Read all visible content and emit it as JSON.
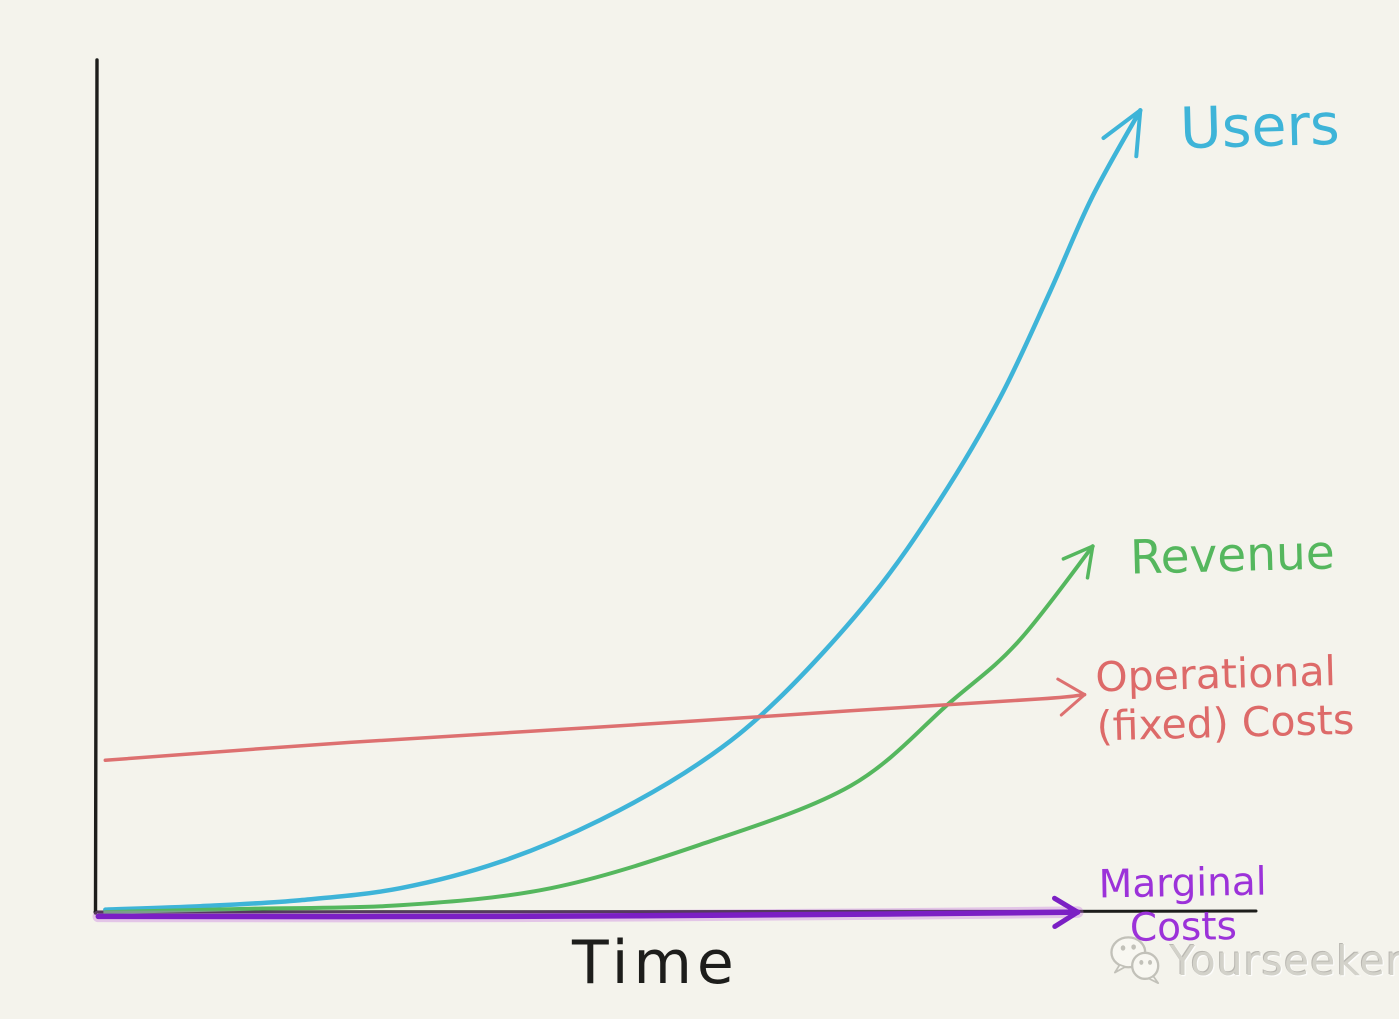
{
  "page": {
    "background_color": "#f4f3ec"
  },
  "chart_data": {
    "type": "line",
    "style": "hand-drawn-sketch",
    "title": "",
    "xlabel": "Time",
    "ylabel": "",
    "axes": {
      "color": "#1d1d1b",
      "ticks": false,
      "gridlines": false,
      "x_range": [
        0,
        1
      ],
      "y_range": [
        0,
        1
      ]
    },
    "legend_position": "inline-right-end-of-line",
    "series": [
      {
        "name": "Users",
        "label_lines": [
          "Users"
        ],
        "color": "#3eb4d8",
        "label_color": "#3eb4d8",
        "stroke_width": 4.5,
        "shape": "exponential-growth",
        "arrow": true,
        "arrow_size": 46,
        "arrow_spread": 0.42,
        "points": [
          [
            0.008,
            0.004
          ],
          [
            0.09,
            0.008
          ],
          [
            0.176,
            0.015
          ],
          [
            0.262,
            0.029
          ],
          [
            0.349,
            0.06
          ],
          [
            0.435,
            0.109
          ],
          [
            0.521,
            0.176
          ],
          [
            0.588,
            0.25
          ],
          [
            0.668,
            0.369
          ],
          [
            0.728,
            0.484
          ],
          [
            0.78,
            0.604
          ],
          [
            0.823,
            0.728
          ],
          [
            0.859,
            0.838
          ],
          [
            0.901,
            0.941
          ]
        ]
      },
      {
        "name": "Revenue",
        "label_lines": [
          "Revenue"
        ],
        "color": "#55b75e",
        "label_color": "#55b75e",
        "stroke_width": 4,
        "shape": "exponential-growth-lagging-users",
        "arrow": true,
        "arrow_size": 32,
        "arrow_spread": 0.5,
        "points": [
          [
            0.008,
            0.001
          ],
          [
            0.133,
            0.005
          ],
          [
            0.262,
            0.009
          ],
          [
            0.392,
            0.029
          ],
          [
            0.521,
            0.08
          ],
          [
            0.651,
            0.149
          ],
          [
            0.737,
            0.247
          ],
          [
            0.795,
            0.317
          ],
          [
            0.86,
            0.43
          ]
        ]
      },
      {
        "name": "Operational (fixed) Costs",
        "label_lines": [
          "Operational",
          "(fixed) Costs"
        ],
        "color": "#dd7070",
        "label_color": "#dd6a69",
        "stroke_width": 3.5,
        "shape": "nearly-flat-slight-rise",
        "arrow": true,
        "arrow_size": 31,
        "arrow_spread": 0.62,
        "points": [
          [
            0.008,
            0.179
          ],
          [
            0.219,
            0.2
          ],
          [
            0.435,
            0.218
          ],
          [
            0.651,
            0.237
          ],
          [
            0.815,
            0.251
          ],
          [
            0.853,
            0.256
          ]
        ]
      },
      {
        "name": "Marginal Costs",
        "label_lines": [
          "Marginal",
          "Costs"
        ],
        "color": "#7b1fc4",
        "label_color": "#9c32d9",
        "glow_color": "#c36fdf",
        "stroke_width": 5.5,
        "shape": "flat-zero-along-x-axis",
        "arrow": true,
        "arrow_size": 27,
        "arrow_spread": 0.55,
        "points": [
          [
            0.002,
            -0.004
          ],
          [
            0.349,
            -0.004
          ],
          [
            0.694,
            -0.001
          ],
          [
            0.847,
            0.001
          ]
        ]
      }
    ]
  },
  "watermark": {
    "text": "Yourseeker",
    "icon": "wechat-icon",
    "color": "#d3d2ca"
  }
}
